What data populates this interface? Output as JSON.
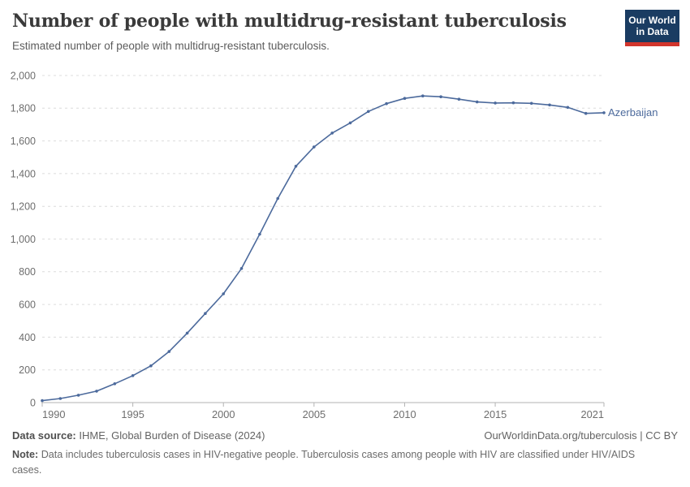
{
  "header": {
    "title": "Number of people with multidrug-resistant tuberculosis",
    "subtitle": "Estimated number of people with multidrug-resistant tuberculosis."
  },
  "logo": {
    "line1": "Our World",
    "line2": "in Data"
  },
  "chart_data": {
    "type": "line",
    "title": "Number of people with multidrug-resistant tuberculosis",
    "xlabel": "",
    "ylabel": "",
    "xlim": [
      1990,
      2021
    ],
    "ylim": [
      0,
      2000
    ],
    "xticks": [
      1990,
      1995,
      2000,
      2005,
      2010,
      2015,
      2021
    ],
    "yticks": [
      0,
      200,
      400,
      600,
      800,
      1000,
      1200,
      1400,
      1600,
      1800,
      2000
    ],
    "grid": "horizontal-dashed",
    "legend_position": "line-end-label",
    "x": [
      1990,
      1991,
      1992,
      1993,
      1994,
      1995,
      1996,
      1997,
      1998,
      1999,
      2000,
      2001,
      2002,
      2003,
      2004,
      2005,
      2006,
      2007,
      2008,
      2009,
      2010,
      2011,
      2012,
      2013,
      2014,
      2015,
      2016,
      2017,
      2018,
      2019,
      2020,
      2021
    ],
    "series": [
      {
        "name": "Azerbaijan",
        "color": "#4c6a9c",
        "values": [
          12,
          25,
          45,
          70,
          115,
          165,
          225,
          312,
          425,
          545,
          665,
          820,
          1030,
          1248,
          1445,
          1563,
          1648,
          1710,
          1780,
          1828,
          1860,
          1875,
          1870,
          1855,
          1838,
          1832,
          1833,
          1830,
          1820,
          1805,
          1768,
          1772
        ]
      }
    ]
  },
  "colors": {
    "line": "#4c6a9c",
    "grid": "#dcdcdc",
    "axis": "#b3b3b3",
    "tick_label": "#6e6e6e",
    "logo_bg": "#1a3c62",
    "logo_red": "#d2352c"
  },
  "footer": {
    "source_label": "Data source:",
    "source": "IHME, Global Burden of Disease (2024)",
    "link": "OurWorldinData.org/tuberculosis | CC BY",
    "note_label": "Note:",
    "note": "Data includes tuberculosis cases in HIV-negative people. Tuberculosis cases among people with HIV are classified under HIV/AIDS cases."
  }
}
